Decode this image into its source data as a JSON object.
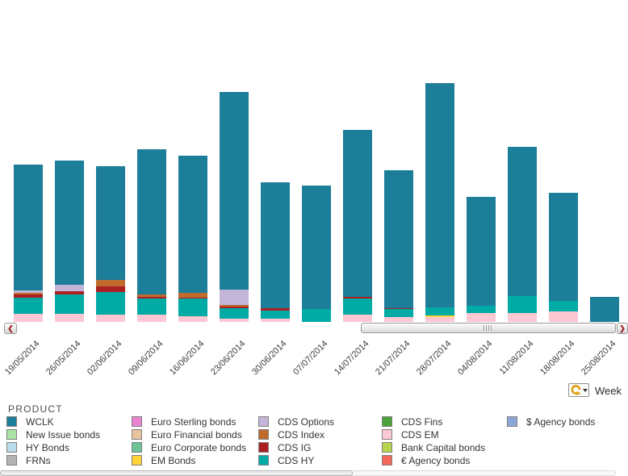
{
  "chart_data": {
    "type": "bar",
    "stacked": true,
    "title": "",
    "xlabel": "Week",
    "ylabel": "",
    "grid": false,
    "legend_position": "bottom",
    "value_units": "pixel-height (no value axis shown in screenshot)",
    "categories": [
      "19/05/2014",
      "26/05/2014",
      "02/06/2014",
      "09/06/2014",
      "16/06/2014",
      "23/06/2014",
      "30/06/2014",
      "07/07/2014",
      "14/07/2014",
      "21/07/2014",
      "28/07/2014",
      "04/08/2014",
      "11/08/2014",
      "18/08/2014",
      "25/08/2014"
    ],
    "series": [
      {
        "name": "WCLK",
        "values": [
          156,
          154,
          141,
          180,
          170,
          245,
          156,
          153,
          207,
          171,
          278,
          135,
          185,
          134,
          31
        ]
      },
      {
        "name": "CDS Options",
        "values": [
          3,
          8,
          0,
          0,
          0,
          19,
          0,
          0,
          0,
          0,
          0,
          0,
          0,
          0,
          0
        ]
      },
      {
        "name": "CDS Index",
        "values": [
          2,
          0,
          8,
          3,
          6,
          2,
          0,
          0,
          0,
          0,
          0,
          0,
          0,
          0,
          0
        ]
      },
      {
        "name": "CDS IG",
        "values": [
          4,
          4,
          7,
          2,
          1,
          2,
          3,
          0,
          2,
          1,
          0,
          0,
          0,
          0,
          0
        ]
      },
      {
        "name": "CDS HY",
        "values": [
          20,
          24,
          28,
          20,
          22,
          13,
          10,
          16,
          20,
          10,
          10,
          9,
          21,
          13,
          0
        ]
      },
      {
        "name": "EM Bonds",
        "values": [
          0,
          0,
          0,
          0,
          0,
          0,
          0,
          0,
          0,
          0,
          2,
          0,
          0,
          0,
          0
        ]
      },
      {
        "name": "CDS EM",
        "values": [
          10,
          10,
          9,
          9,
          7,
          4,
          4,
          0,
          9,
          6,
          6,
          11,
          11,
          13,
          0
        ]
      }
    ],
    "stack_order_bottom_to_top": [
      "CDS EM",
      "EM Bonds",
      "CDS HY",
      "CDS IG",
      "CDS Index",
      "CDS Options",
      "WCLK"
    ]
  },
  "colors": {
    "WCLK": "#1d7e9a",
    "New Issue bonds": "#abe3a6",
    "HY Bonds": "#b9dcea",
    "FRNs": "#b3b3b3",
    "Euro Sterling bonds": "#e983d2",
    "Euro Financial bonds": "#e9c29e",
    "Euro Corporate bonds": "#6dc394",
    "EM Bonds": "#fdd335",
    "CDS Options": "#c3b5d9",
    "CDS Index": "#c06a2e",
    "CDS IG": "#ab2123",
    "CDS HY": "#00aaa5",
    "CDS Fins": "#4ba33c",
    "CDS EM": "#fdc8d3",
    "Bank Capital bonds": "#b8d44e",
    "€ Agency bonds": "#f4695c",
    "$ Agency bonds": "#8ca6d8"
  },
  "legend": {
    "title": "PRODUCT",
    "columns": [
      [
        "WCLK",
        "New Issue bonds",
        "HY Bonds",
        "FRNs"
      ],
      [
        "Euro Sterling bonds",
        "Euro Financial bonds",
        "Euro Corporate bonds",
        "EM Bonds"
      ],
      [
        "CDS Options",
        "CDS Index",
        "CDS IG",
        "CDS HY"
      ],
      [
        "CDS Fins",
        "CDS EM",
        "Bank Capital bonds",
        "€ Agency bonds"
      ],
      [
        "$ Agency bonds"
      ]
    ]
  },
  "controls": {
    "week_label": "Week",
    "week_icon": "refresh-rotate-arrow-icon",
    "scroll_left_glyph": "❮",
    "scroll_right_glyph": "❯"
  }
}
